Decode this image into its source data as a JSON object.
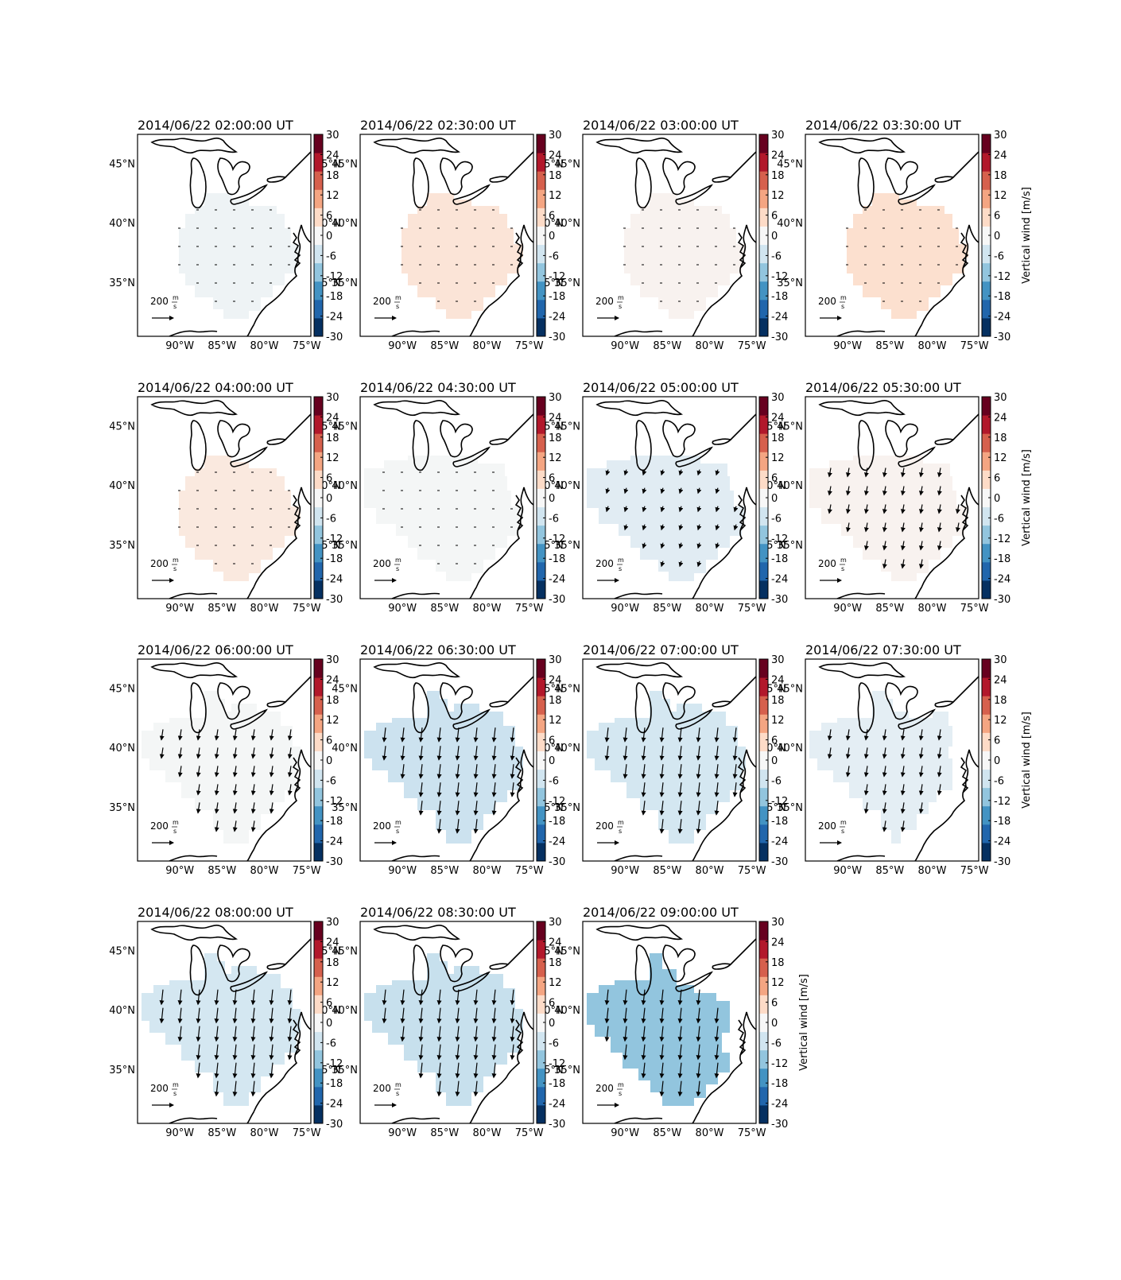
{
  "figure": {
    "colorbar": {
      "ticks": [
        "30",
        "24",
        "18",
        "12",
        "6",
        "0",
        "-6",
        "-12",
        "-18",
        "-24",
        "-30"
      ],
      "label": "Vertical wind [m/s]",
      "range": [
        -30,
        30
      ],
      "colors": [
        "#053061",
        "#2166ac",
        "#4393c3",
        "#92c5de",
        "#d1e5f0",
        "#f7f7f7",
        "#fddbc7",
        "#f4a582",
        "#d6604d",
        "#b2182b",
        "#67001f"
      ]
    },
    "lon_labels": [
      "90°W",
      "85°W",
      "80°W",
      "75°W"
    ],
    "lat_labels": [
      "45°N",
      "40°N",
      "35°N"
    ],
    "reference_vector": {
      "value": "200",
      "unit_num": "m",
      "unit_den": "s"
    },
    "panels": [
      {
        "title": "2014/06/22 02:00:00 UT",
        "vertical_wind": -1.5,
        "arrow_length": 0.05,
        "region": "A",
        "show_cbar_label": false,
        "show_right_lat": true
      },
      {
        "title": "2014/06/22 02:30:00 UT",
        "vertical_wind": 4.0,
        "arrow_length": 0.05,
        "region": "A",
        "show_cbar_label": false,
        "show_right_lat": true
      },
      {
        "title": "2014/06/22 03:00:00 UT",
        "vertical_wind": 1.0,
        "arrow_length": 0.05,
        "region": "A",
        "show_cbar_label": false,
        "show_right_lat": false
      },
      {
        "title": "2014/06/22 03:30:00 UT",
        "vertical_wind": 5.0,
        "arrow_length": 0.05,
        "region": "A",
        "show_cbar_label": true,
        "show_right_lat": false
      },
      {
        "title": "2014/06/22 04:00:00 UT",
        "vertical_wind": 3.0,
        "arrow_length": 0.05,
        "region": "A",
        "show_cbar_label": false,
        "show_right_lat": true
      },
      {
        "title": "2014/06/22 04:30:00 UT",
        "vertical_wind": -0.5,
        "arrow_length": 0.12,
        "region": "B",
        "show_cbar_label": false,
        "show_right_lat": true
      },
      {
        "title": "2014/06/22 05:00:00 UT",
        "vertical_wind": -3.5,
        "arrow_length": 0.3,
        "region": "B",
        "show_cbar_label": false,
        "show_right_lat": true
      },
      {
        "title": "2014/06/22 05:30:00 UT",
        "vertical_wind": 1.0,
        "arrow_length": 0.5,
        "region": "B",
        "show_cbar_label": true,
        "show_right_lat": false
      },
      {
        "title": "2014/06/22 06:00:00 UT",
        "vertical_wind": -0.5,
        "arrow_length": 0.6,
        "region": "C",
        "show_cbar_label": false,
        "show_right_lat": false
      },
      {
        "title": "2014/06/22 06:30:00 UT",
        "vertical_wind": -6.5,
        "arrow_length": 0.8,
        "region": "C",
        "show_cbar_label": false,
        "show_right_lat": true
      },
      {
        "title": "2014/06/22 07:00:00 UT",
        "vertical_wind": -5.5,
        "arrow_length": 0.8,
        "region": "C",
        "show_cbar_label": false,
        "show_right_lat": true
      },
      {
        "title": "2014/06/22 07:30:00 UT",
        "vertical_wind": -3.0,
        "arrow_length": 0.6,
        "region": "D",
        "show_cbar_label": true,
        "show_right_lat": false
      },
      {
        "title": "2014/06/22 08:00:00 UT",
        "vertical_wind": -5.5,
        "arrow_length": 0.85,
        "region": "C",
        "show_cbar_label": false,
        "show_right_lat": true
      },
      {
        "title": "2014/06/22 08:30:00 UT",
        "vertical_wind": -7.0,
        "arrow_length": 0.85,
        "region": "C",
        "show_cbar_label": false,
        "show_right_lat": true
      },
      {
        "title": "2014/06/22 09:00:00 UT",
        "vertical_wind": -12.0,
        "arrow_length": 0.85,
        "region": "E",
        "show_cbar_label": true,
        "show_right_lat": false
      }
    ]
  }
}
